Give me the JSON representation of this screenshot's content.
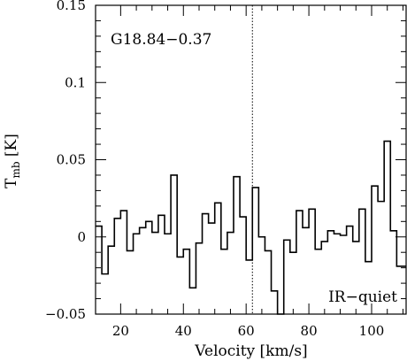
{
  "chart_data": {
    "type": "line",
    "style": "step",
    "title": "",
    "source_label": "G18.84−0.37",
    "class_label": "IR−quiet",
    "xlabel": "Velocity [km/s]",
    "ylabel_main": "T",
    "ylabel_sub": "mb",
    "ylabel_unit": " [K]",
    "xlim": [
      12,
      111
    ],
    "ylim": [
      -0.05,
      0.15
    ],
    "x_ticks": [
      20,
      40,
      60,
      80,
      100
    ],
    "x_tick_labels": [
      "20",
      "40",
      "60",
      "80",
      "100"
    ],
    "y_ticks": [
      -0.05,
      0,
      0.05,
      0.1,
      0.15
    ],
    "y_tick_labels": [
      "−0.05",
      "0",
      "0.05",
      "0.1",
      "0.15"
    ],
    "reference_velocity": 62,
    "channel_edges": [
      12,
      14,
      16,
      18,
      20,
      22,
      24,
      26,
      28,
      30,
      32,
      34,
      36,
      38,
      40,
      42,
      44,
      46,
      48,
      50,
      52,
      54,
      56,
      58,
      60,
      62,
      64,
      66,
      68,
      70,
      72,
      74,
      76,
      78,
      80,
      82,
      84,
      86,
      88,
      90,
      92,
      94,
      96,
      98,
      100,
      102,
      104,
      106,
      108,
      111
    ],
    "values": [
      0.007,
      -0.024,
      -0.006,
      0.012,
      0.017,
      -0.009,
      0.002,
      0.006,
      0.01,
      0.003,
      0.014,
      0.002,
      0.04,
      -0.013,
      -0.008,
      -0.033,
      -0.004,
      0.015,
      0.009,
      0.022,
      -0.008,
      0.003,
      0.039,
      0.013,
      -0.015,
      0.032,
      0.0,
      -0.009,
      -0.035,
      -0.05,
      -0.002,
      -0.01,
      0.017,
      0.006,
      0.018,
      -0.008,
      -0.003,
      0.004,
      0.002,
      0.001,
      0.007,
      -0.003,
      0.018,
      -0.016,
      0.033,
      0.023,
      0.062,
      0.004,
      -0.019
    ]
  }
}
